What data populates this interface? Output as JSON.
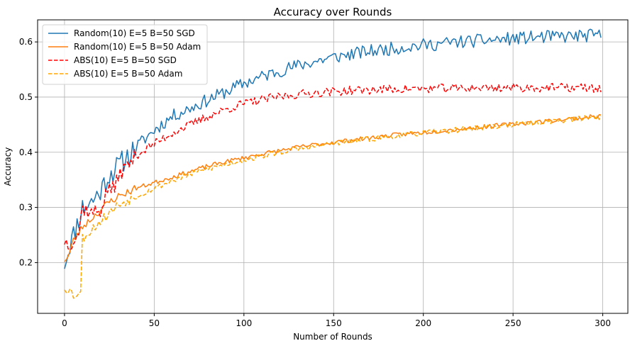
{
  "chart_data": {
    "type": "line",
    "title": "Accuracy over Rounds",
    "xlabel": "Number of Rounds",
    "ylabel": "Accuracy",
    "xlim": [
      -15,
      314
    ],
    "ylim": [
      0.108,
      0.64
    ],
    "xticks": [
      0,
      50,
      100,
      150,
      200,
      250,
      300
    ],
    "yticks": [
      0.2,
      0.3,
      0.4,
      0.5,
      0.6
    ],
    "grid": true,
    "legend_position": "top-left",
    "rounds": 300,
    "series": [
      {
        "name": "Random(10) E=5 B=50 SGD",
        "color": "#1f77b4",
        "dash": "solid",
        "points": [
          [
            0,
            0.2
          ],
          [
            1,
            0.21
          ],
          [
            2,
            0.22
          ],
          [
            3,
            0.235
          ],
          [
            4,
            0.24
          ],
          [
            5,
            0.25
          ],
          [
            10,
            0.3
          ],
          [
            15,
            0.31
          ],
          [
            20,
            0.33
          ],
          [
            25,
            0.36
          ],
          [
            30,
            0.375
          ],
          [
            40,
            0.41
          ],
          [
            50,
            0.44
          ],
          [
            60,
            0.465
          ],
          [
            70,
            0.48
          ],
          [
            80,
            0.495
          ],
          [
            90,
            0.51
          ],
          [
            100,
            0.525
          ],
          [
            110,
            0.537
          ],
          [
            120,
            0.548
          ],
          [
            130,
            0.557
          ],
          [
            140,
            0.565
          ],
          [
            150,
            0.572
          ],
          [
            160,
            0.578
          ],
          [
            170,
            0.583
          ],
          [
            180,
            0.587
          ],
          [
            190,
            0.591
          ],
          [
            200,
            0.594
          ],
          [
            210,
            0.597
          ],
          [
            220,
            0.6
          ],
          [
            230,
            0.602
          ],
          [
            240,
            0.604
          ],
          [
            250,
            0.606
          ],
          [
            260,
            0.608
          ],
          [
            270,
            0.609
          ],
          [
            280,
            0.61
          ],
          [
            290,
            0.611
          ],
          [
            299,
            0.612
          ]
        ]
      },
      {
        "name": "Random(10) E=5 B=50 Adam",
        "color": "#ff7f0e",
        "dash": "solid",
        "points": [
          [
            0,
            0.205
          ],
          [
            2,
            0.21
          ],
          [
            5,
            0.24
          ],
          [
            10,
            0.265
          ],
          [
            15,
            0.28
          ],
          [
            20,
            0.295
          ],
          [
            25,
            0.31
          ],
          [
            30,
            0.32
          ],
          [
            40,
            0.335
          ],
          [
            50,
            0.345
          ],
          [
            60,
            0.355
          ],
          [
            70,
            0.365
          ],
          [
            80,
            0.375
          ],
          [
            90,
            0.383
          ],
          [
            100,
            0.39
          ],
          [
            110,
            0.397
          ],
          [
            120,
            0.403
          ],
          [
            130,
            0.409
          ],
          [
            140,
            0.414
          ],
          [
            150,
            0.418
          ],
          [
            160,
            0.422
          ],
          [
            170,
            0.426
          ],
          [
            180,
            0.43
          ],
          [
            190,
            0.433
          ],
          [
            200,
            0.436
          ],
          [
            210,
            0.439
          ],
          [
            220,
            0.442
          ],
          [
            230,
            0.445
          ],
          [
            240,
            0.448
          ],
          [
            250,
            0.451
          ],
          [
            260,
            0.454
          ],
          [
            270,
            0.457
          ],
          [
            280,
            0.46
          ],
          [
            290,
            0.463
          ],
          [
            299,
            0.466
          ]
        ]
      },
      {
        "name": "ABS(10) E=5 B=50 SGD",
        "color": "#ff0000",
        "dash": "dashed",
        "points": [
          [
            0,
            0.24
          ],
          [
            2,
            0.235
          ],
          [
            5,
            0.24
          ],
          [
            8,
            0.255
          ],
          [
            10,
            0.3
          ],
          [
            15,
            0.29
          ],
          [
            20,
            0.295
          ],
          [
            25,
            0.34
          ],
          [
            28,
            0.33
          ],
          [
            30,
            0.36
          ],
          [
            35,
            0.375
          ],
          [
            40,
            0.395
          ],
          [
            50,
            0.415
          ],
          [
            60,
            0.435
          ],
          [
            70,
            0.45
          ],
          [
            80,
            0.465
          ],
          [
            90,
            0.478
          ],
          [
            100,
            0.488
          ],
          [
            110,
            0.495
          ],
          [
            120,
            0.501
          ],
          [
            130,
            0.505
          ],
          [
            140,
            0.508
          ],
          [
            150,
            0.51
          ],
          [
            160,
            0.512
          ],
          [
            170,
            0.513
          ],
          [
            180,
            0.514
          ],
          [
            190,
            0.515
          ],
          [
            200,
            0.515
          ],
          [
            210,
            0.516
          ],
          [
            220,
            0.516
          ],
          [
            230,
            0.517
          ],
          [
            240,
            0.517
          ],
          [
            250,
            0.517
          ],
          [
            260,
            0.517
          ],
          [
            270,
            0.517
          ],
          [
            280,
            0.517
          ],
          [
            290,
            0.517
          ],
          [
            299,
            0.515
          ]
        ]
      },
      {
        "name": "ABS(10) E=5 B=50 Adam",
        "color": "#ffa500",
        "dash": "dashed",
        "points": [
          [
            0,
            0.155
          ],
          [
            3,
            0.15
          ],
          [
            5,
            0.14
          ],
          [
            7,
            0.145
          ],
          [
            9,
            0.145
          ],
          [
            10,
            0.245
          ],
          [
            12,
            0.25
          ],
          [
            15,
            0.26
          ],
          [
            20,
            0.275
          ],
          [
            25,
            0.29
          ],
          [
            30,
            0.305
          ],
          [
            40,
            0.32
          ],
          [
            50,
            0.335
          ],
          [
            60,
            0.348
          ],
          [
            70,
            0.36
          ],
          [
            80,
            0.37
          ],
          [
            90,
            0.378
          ],
          [
            100,
            0.386
          ],
          [
            110,
            0.393
          ],
          [
            120,
            0.4
          ],
          [
            130,
            0.406
          ],
          [
            140,
            0.411
          ],
          [
            150,
            0.416
          ],
          [
            160,
            0.42
          ],
          [
            170,
            0.424
          ],
          [
            180,
            0.428
          ],
          [
            190,
            0.432
          ],
          [
            200,
            0.435
          ],
          [
            210,
            0.438
          ],
          [
            220,
            0.441
          ],
          [
            230,
            0.444
          ],
          [
            240,
            0.447
          ],
          [
            250,
            0.45
          ],
          [
            260,
            0.453
          ],
          [
            270,
            0.456
          ],
          [
            280,
            0.459
          ],
          [
            290,
            0.462
          ],
          [
            299,
            0.464
          ]
        ]
      }
    ]
  }
}
